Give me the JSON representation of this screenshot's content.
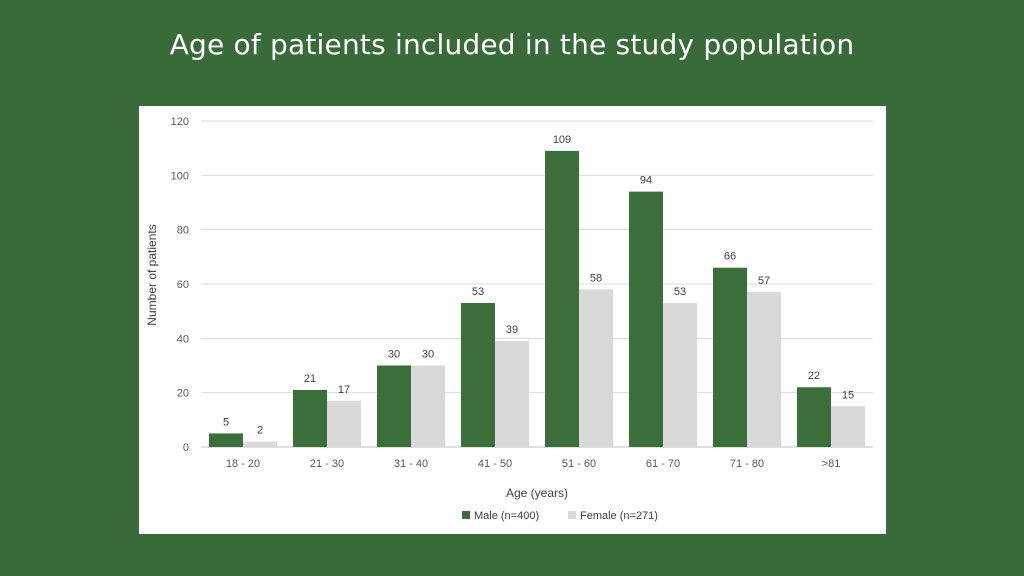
{
  "slide": {
    "title": "Age of patients included in the study population"
  },
  "chart_data": {
    "type": "bar",
    "title": "",
    "xlabel": "Age (years)",
    "ylabel": "Number of patients",
    "ylim": [
      0,
      120
    ],
    "yticks": [
      0,
      20,
      40,
      60,
      80,
      100,
      120
    ],
    "grid": true,
    "legend_position": "bottom",
    "categories": [
      "18 - 20",
      "21 - 30",
      "31 - 40",
      "41 - 50",
      "51 - 60",
      "61 - 70",
      "71 - 80",
      ">81"
    ],
    "series": [
      {
        "name": "Male (n=400)",
        "color": "#3b6e3b",
        "values": [
          5,
          21,
          30,
          53,
          109,
          94,
          66,
          22
        ]
      },
      {
        "name": "Female (n=271)",
        "color": "#d9d9d9",
        "values": [
          2,
          17,
          30,
          39,
          58,
          53,
          57,
          15
        ]
      }
    ]
  }
}
